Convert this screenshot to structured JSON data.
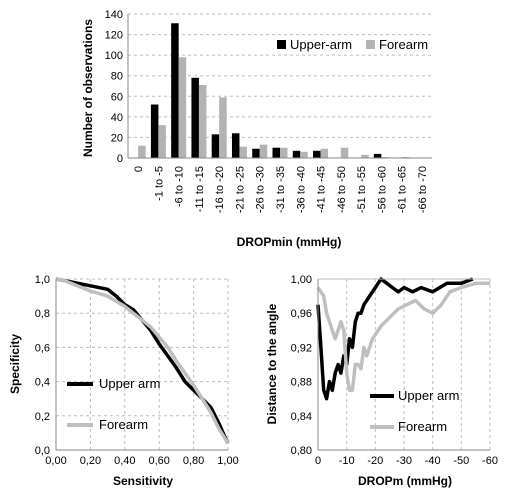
{
  "chart_data": [
    {
      "type": "bar",
      "xlabel": "DROPmin (mmHg)",
      "ylabel": "Number of observations",
      "ylim": [
        0,
        140
      ],
      "yticks": [
        "0",
        "20",
        "40",
        "60",
        "80",
        "100",
        "120",
        "140"
      ],
      "grid": "horizontal dashed",
      "legend": "top-right",
      "categories": [
        "0",
        "-1 to -5",
        "-6 to -10",
        "-11 to -15",
        "-16 to -20",
        "-21 to -25",
        "-26 to -30",
        "-31 to -35",
        "-36 to -40",
        "-41 to -45",
        "-46 to -50",
        "-51 to -55",
        "-56 to -60",
        "-61 to -65",
        "-66 to -70"
      ],
      "series": [
        {
          "name": "Upper-arm",
          "color": "#000000",
          "values": [
            0,
            52,
            131,
            78,
            23,
            24,
            9,
            10,
            7,
            7,
            0,
            0,
            4,
            0,
            0
          ]
        },
        {
          "name": "Forearm",
          "color": "#b3b3b3",
          "values": [
            12,
            32,
            98,
            71,
            59,
            11,
            13,
            10,
            6,
            9,
            10,
            3,
            1,
            1,
            0
          ]
        }
      ]
    },
    {
      "type": "line",
      "xlabel": "Sensitivity",
      "ylabel": "Specificity",
      "xlim": [
        0,
        1
      ],
      "ylim": [
        0,
        1
      ],
      "xticks": [
        "0,00",
        "0,20",
        "0,40",
        "0,60",
        "0,80",
        "1,00"
      ],
      "yticks": [
        "0,0",
        "0,2",
        "0,4",
        "0,6",
        "0,8",
        "1,0"
      ],
      "grid": "dashed",
      "legend": "center-left",
      "series": [
        {
          "name": "Upper arm",
          "color": "#000000",
          "x": [
            0,
            0.05,
            0.1,
            0.15,
            0.2,
            0.3,
            0.35,
            0.4,
            0.45,
            0.5,
            0.55,
            0.6,
            0.65,
            0.7,
            0.75,
            0.8,
            0.85,
            0.9,
            0.95,
            0.98,
            1.0
          ],
          "y": [
            1.0,
            0.99,
            0.98,
            0.97,
            0.96,
            0.94,
            0.9,
            0.85,
            0.82,
            0.76,
            0.7,
            0.62,
            0.55,
            0.48,
            0.4,
            0.35,
            0.3,
            0.25,
            0.15,
            0.08,
            0.04
          ]
        },
        {
          "name": "Forearm",
          "color": "#bfbfbf",
          "x": [
            0,
            0.05,
            0.1,
            0.15,
            0.2,
            0.3,
            0.35,
            0.4,
            0.45,
            0.5,
            0.55,
            0.6,
            0.65,
            0.7,
            0.75,
            0.8,
            0.85,
            0.9,
            0.95,
            1.0
          ],
          "y": [
            1.0,
            0.99,
            0.97,
            0.95,
            0.93,
            0.9,
            0.87,
            0.84,
            0.8,
            0.76,
            0.72,
            0.66,
            0.6,
            0.52,
            0.45,
            0.38,
            0.3,
            0.22,
            0.12,
            0.04
          ]
        }
      ]
    },
    {
      "type": "line",
      "xlabel": "DROPm (mmHg)",
      "ylabel": "Distance to the angle",
      "xlim": [
        0,
        -60
      ],
      "ylim": [
        0.8,
        1.0
      ],
      "xticks": [
        "0",
        "-10",
        "-20",
        "-30",
        "-40",
        "-50",
        "-60"
      ],
      "yticks": [
        "0,80",
        "0,84",
        "0,88",
        "0,92",
        "0,96",
        "1,00"
      ],
      "grid": "vertical dashed",
      "legend": "bottom-right",
      "series": [
        {
          "name": "Upper arm",
          "color": "#000000",
          "x": [
            0,
            -1,
            -2,
            -3,
            -4,
            -5,
            -6,
            -7,
            -8,
            -9,
            -10,
            -11,
            -12,
            -13,
            -14,
            -15,
            -16,
            -18,
            -20,
            -22,
            -24,
            -26,
            -28,
            -30,
            -33,
            -36,
            -40,
            -45,
            -50,
            -54
          ],
          "y": [
            0.97,
            0.92,
            0.87,
            0.86,
            0.88,
            0.87,
            0.89,
            0.9,
            0.89,
            0.91,
            0.9,
            0.93,
            0.92,
            0.95,
            0.96,
            0.96,
            0.97,
            0.98,
            0.99,
            1.0,
            0.995,
            0.99,
            0.985,
            0.99,
            0.985,
            0.99,
            0.985,
            0.995,
            0.995,
            1.0
          ]
        },
        {
          "name": "Forearm",
          "color": "#bfbfbf",
          "x": [
            0,
            -1,
            -2,
            -3,
            -4,
            -5,
            -6,
            -7,
            -8,
            -9,
            -10,
            -11,
            -12,
            -13,
            -14,
            -15,
            -16,
            -17,
            -18,
            -19,
            -20,
            -22,
            -25,
            -28,
            -31,
            -34,
            -37,
            -40,
            -43,
            -46,
            -50,
            -55,
            -60
          ],
          "y": [
            0.99,
            0.985,
            0.98,
            0.96,
            0.95,
            0.94,
            0.93,
            0.94,
            0.95,
            0.94,
            0.89,
            0.87,
            0.87,
            0.9,
            0.9,
            0.895,
            0.92,
            0.91,
            0.92,
            0.93,
            0.935,
            0.945,
            0.955,
            0.965,
            0.97,
            0.975,
            0.965,
            0.96,
            0.97,
            0.985,
            0.99,
            0.995,
            0.995
          ]
        }
      ]
    }
  ]
}
